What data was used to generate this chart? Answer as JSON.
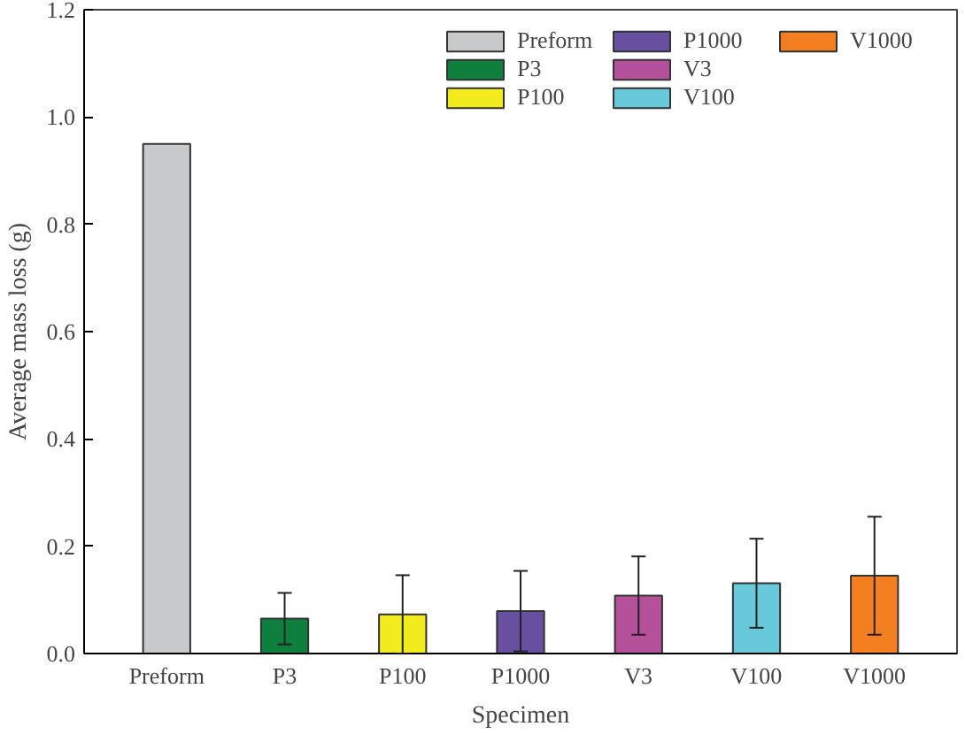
{
  "chart_data": {
    "type": "bar",
    "xlabel": "Specimen",
    "ylabel": "Average mass loss (g)",
    "categories": [
      "Preform",
      "P3",
      "P100",
      "P1000",
      "V3",
      "V100",
      "V1000"
    ],
    "series": [
      {
        "name": "Preform",
        "color": "#c8c9cb",
        "values": [
          0.95,
          null,
          null,
          null,
          null,
          null,
          null
        ],
        "errors": [
          null,
          null,
          null,
          null,
          null,
          null,
          null
        ]
      },
      {
        "name": "P3",
        "color": "#0e7f3c",
        "values": [
          null,
          0.065,
          null,
          null,
          null,
          null,
          null
        ],
        "errors": [
          null,
          0.048,
          null,
          null,
          null,
          null,
          null
        ]
      },
      {
        "name": "P100",
        "color": "#f2ec1c",
        "values": [
          null,
          null,
          0.073,
          null,
          null,
          null,
          null
        ],
        "errors": [
          null,
          null,
          0.073,
          null,
          null,
          null,
          null
        ]
      },
      {
        "name": "P1000",
        "color": "#67509f",
        "values": [
          null,
          null,
          null,
          0.079,
          null,
          null,
          null
        ],
        "errors": [
          null,
          null,
          null,
          0.075,
          null,
          null,
          null
        ]
      },
      {
        "name": "V3",
        "color": "#b5509a",
        "values": [
          null,
          null,
          null,
          null,
          0.108,
          null,
          null
        ],
        "errors": [
          null,
          null,
          null,
          null,
          0.073,
          null,
          null
        ]
      },
      {
        "name": "V100",
        "color": "#67c9da",
        "values": [
          null,
          null,
          null,
          null,
          null,
          0.131,
          null
        ],
        "errors": [
          null,
          null,
          null,
          null,
          null,
          0.083,
          null
        ]
      },
      {
        "name": "V1000",
        "color": "#f47f20",
        "values": [
          null,
          null,
          null,
          null,
          null,
          null,
          0.145
        ],
        "errors": [
          null,
          null,
          null,
          null,
          null,
          null,
          0.11
        ]
      }
    ],
    "ylim": [
      0,
      1.2
    ],
    "yticks": [
      {
        "value": 0,
        "label": "0.0"
      },
      0.2,
      0.4,
      0.6,
      0.8,
      {
        "value": 1,
        "label": "1.0"
      },
      1.2
    ],
    "grid": false,
    "legend": "top right"
  }
}
